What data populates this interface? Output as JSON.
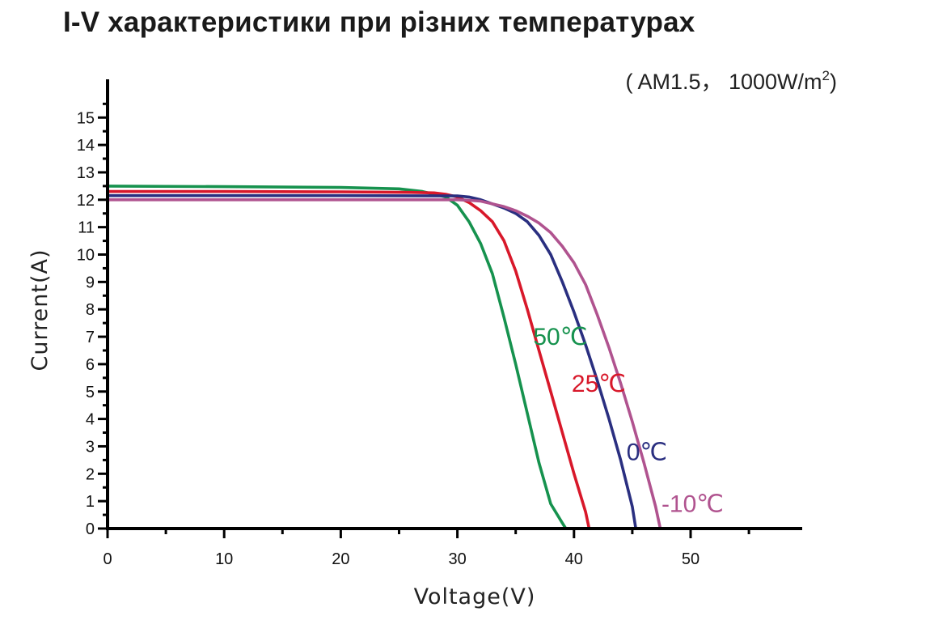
{
  "chart_data": {
    "type": "line",
    "title": "I-V характеристики при різних температурах",
    "conditions": {
      "prefix": "( AM1.5， 1000W/m",
      "superscript": "2",
      "suffix": ")"
    },
    "xlabel": "Voltage(V)",
    "ylabel": "Current(A)",
    "xlim": [
      0,
      60
    ],
    "ylim": [
      0,
      16
    ],
    "xticks": [
      0,
      10,
      20,
      30,
      40,
      50
    ],
    "yticks": [
      0,
      1,
      2,
      3,
      4,
      5,
      6,
      7,
      8,
      9,
      10,
      11,
      12,
      13,
      14,
      15
    ],
    "grid": false,
    "legend": "inline labels on curves",
    "series": [
      {
        "name": "50℃",
        "color": "#16924e",
        "x": [
          0,
          10,
          20,
          25,
          27,
          28,
          29,
          30,
          31,
          32,
          33,
          34,
          35,
          36,
          37,
          38,
          39,
          39.3
        ],
        "y": [
          12.5,
          12.48,
          12.45,
          12.4,
          12.3,
          12.2,
          12.1,
          11.8,
          11.2,
          10.4,
          9.3,
          7.7,
          6.0,
          4.2,
          2.4,
          0.9,
          0.2,
          0
        ]
      },
      {
        "name": "25℃",
        "color": "#d8182a",
        "x": [
          0,
          10,
          20,
          26,
          28,
          29,
          30,
          31,
          32,
          33,
          34,
          35,
          36,
          37,
          38,
          39,
          40,
          41,
          41.3
        ],
        "y": [
          12.3,
          12.3,
          12.29,
          12.27,
          12.25,
          12.2,
          12.1,
          11.9,
          11.6,
          11.2,
          10.5,
          9.4,
          8.0,
          6.5,
          5.0,
          3.5,
          2.0,
          0.6,
          0
        ]
      },
      {
        "name": "0℃",
        "color": "#2a2f80",
        "x": [
          0,
          10,
          20,
          30,
          31,
          32,
          33,
          34,
          35,
          36,
          37,
          38,
          39,
          40,
          41,
          42,
          43,
          44,
          45,
          45.3
        ],
        "y": [
          12.15,
          12.15,
          12.15,
          12.14,
          12.1,
          12.0,
          11.85,
          11.7,
          11.5,
          11.2,
          10.7,
          10.0,
          9.0,
          7.9,
          6.7,
          5.4,
          4.0,
          2.5,
          0.8,
          0
        ]
      },
      {
        "name": "-10℃",
        "color": "#b0538f",
        "x": [
          0,
          10,
          20,
          30,
          31,
          32,
          33,
          34,
          35,
          36,
          37,
          38,
          39,
          40,
          41,
          42,
          43,
          44,
          45,
          46,
          47,
          47.4
        ],
        "y": [
          12.0,
          12.0,
          12.0,
          12.0,
          11.98,
          11.95,
          11.85,
          11.75,
          11.6,
          11.4,
          11.15,
          10.8,
          10.3,
          9.7,
          8.9,
          7.8,
          6.6,
          5.3,
          3.9,
          2.4,
          0.8,
          0
        ]
      }
    ]
  }
}
